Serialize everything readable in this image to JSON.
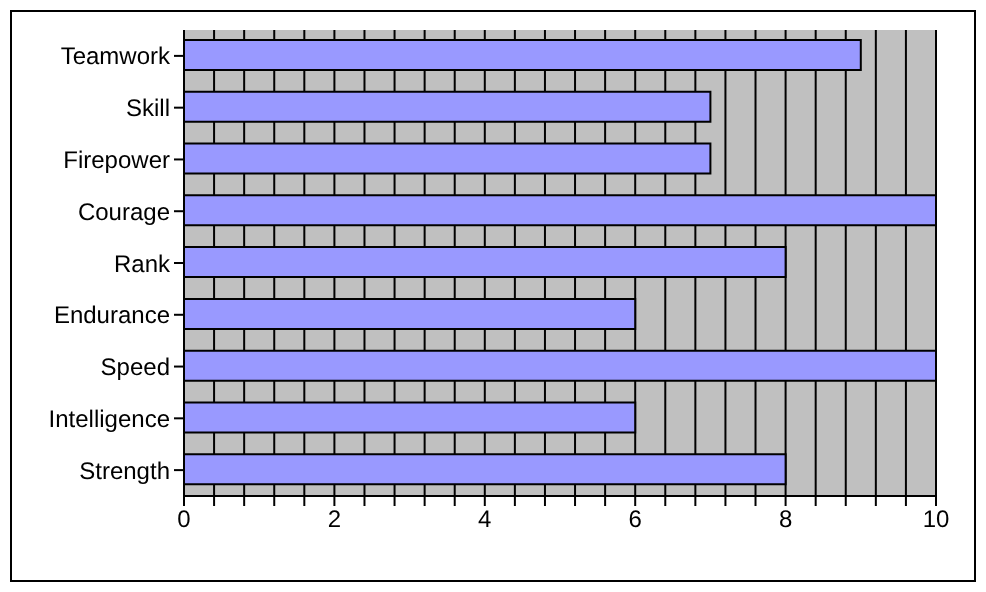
{
  "chart_data": {
    "type": "bar",
    "orientation": "horizontal",
    "categories": [
      "Teamwork",
      "Skill",
      "Firepower",
      "Courage",
      "Rank",
      "Endurance",
      "Speed",
      "Intelligence",
      "Strength"
    ],
    "values": [
      9,
      7,
      7,
      10,
      8,
      6,
      10,
      6,
      8
    ],
    "color": "#9999ff",
    "xlim": [
      0,
      10
    ],
    "xticks": [
      0,
      {
        "value": 0.4,
        "label": null
      },
      {
        "value": 0.8,
        "label": null
      },
      {
        "value": 1.2,
        "label": null
      },
      {
        "value": 1.6,
        "label": null
      },
      2,
      {
        "value": 2.4,
        "label": null
      },
      {
        "value": 2.8,
        "label": null
      },
      {
        "value": 3.2,
        "label": null
      },
      {
        "value": 3.6,
        "label": null
      },
      4,
      {
        "value": 4.4,
        "label": null
      },
      {
        "value": 4.8,
        "label": null
      },
      {
        "value": 5.2,
        "label": null
      },
      {
        "value": 5.6,
        "label": null
      },
      6,
      {
        "value": 6.4,
        "label": null
      },
      {
        "value": 6.8,
        "label": null
      },
      {
        "value": 7.2,
        "label": null
      },
      {
        "value": 7.6,
        "label": null
      },
      8,
      {
        "value": 8.4,
        "label": null
      },
      {
        "value": 8.8,
        "label": null
      },
      {
        "value": 9.2,
        "label": null
      },
      {
        "value": 9.6,
        "label": null
      },
      10
    ],
    "grid": "x",
    "legend": false
  }
}
